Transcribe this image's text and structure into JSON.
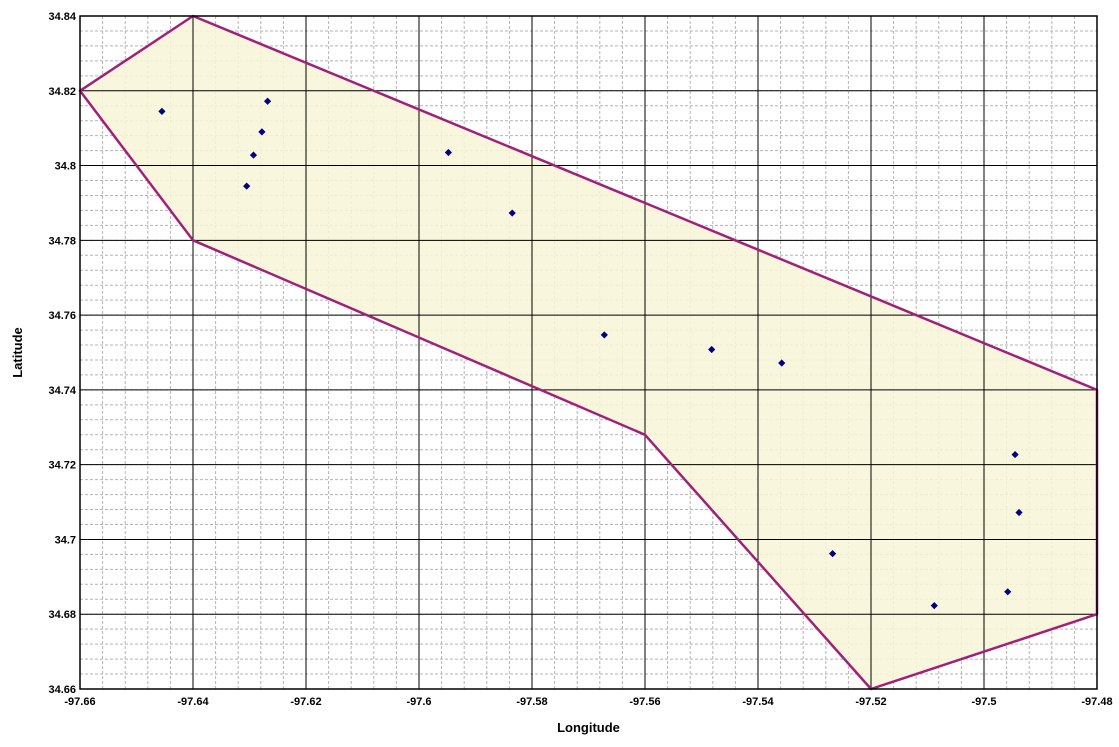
{
  "chart_data": {
    "type": "scatter",
    "title": "",
    "xlabel": "Longitude",
    "ylabel": "Latitude",
    "xlim": [
      -97.66,
      -97.48
    ],
    "ylim": [
      34.66,
      34.84
    ],
    "x_ticks": [
      -97.66,
      -97.64,
      -97.62,
      -97.6,
      -97.58,
      -97.56,
      -97.54,
      -97.52,
      -97.5,
      -97.48
    ],
    "y_ticks": [
      34.66,
      34.68,
      34.7,
      34.72,
      34.74,
      34.76,
      34.78,
      34.8,
      34.82,
      34.84
    ],
    "x_tick_labels": [
      "-97.66",
      "-97.64",
      "-97.62",
      "-97.6",
      "-97.58",
      "-97.56",
      "-97.54",
      "-97.52",
      "-97.5",
      "-97.48"
    ],
    "y_tick_labels": [
      "34.66",
      "34.68",
      "34.7",
      "34.72",
      "34.74",
      "34.76",
      "34.78",
      "34.8",
      "34.82",
      "34.84"
    ],
    "grid": {
      "major": true,
      "minor": true,
      "minor_step": 0.004
    },
    "legend": "none",
    "colors": {
      "polygon_fill": "#f7f6d9",
      "polygon_stroke": "#a0207a",
      "points": "#000080",
      "major_grid": "#000000",
      "minor_grid": "#b4b4b4"
    },
    "polygon": {
      "vertices": [
        [
          -97.66,
          34.82
        ],
        [
          -97.64,
          34.84
        ],
        [
          -97.48,
          34.74
        ],
        [
          -97.48,
          34.68
        ],
        [
          -97.52,
          34.66
        ],
        [
          -97.56,
          34.728
        ],
        [
          -97.64,
          34.78
        ]
      ]
    },
    "series": [
      {
        "marker": "diamond",
        "points": [
          [
            -97.6455,
            34.8145
          ],
          [
            -97.6268,
            34.8172
          ],
          [
            -97.6278,
            34.809
          ],
          [
            -97.6293,
            34.8028
          ],
          [
            -97.6305,
            34.7945
          ],
          [
            -97.5948,
            34.8035
          ],
          [
            -97.5835,
            34.7873
          ],
          [
            -97.5672,
            34.7547
          ],
          [
            -97.5482,
            34.7508
          ],
          [
            -97.5358,
            34.7472
          ],
          [
            -97.4945,
            34.7227
          ],
          [
            -97.4938,
            34.7072
          ],
          [
            -97.5268,
            34.6962
          ],
          [
            -97.5088,
            34.6823
          ],
          [
            -97.4958,
            34.686
          ]
        ]
      }
    ]
  }
}
